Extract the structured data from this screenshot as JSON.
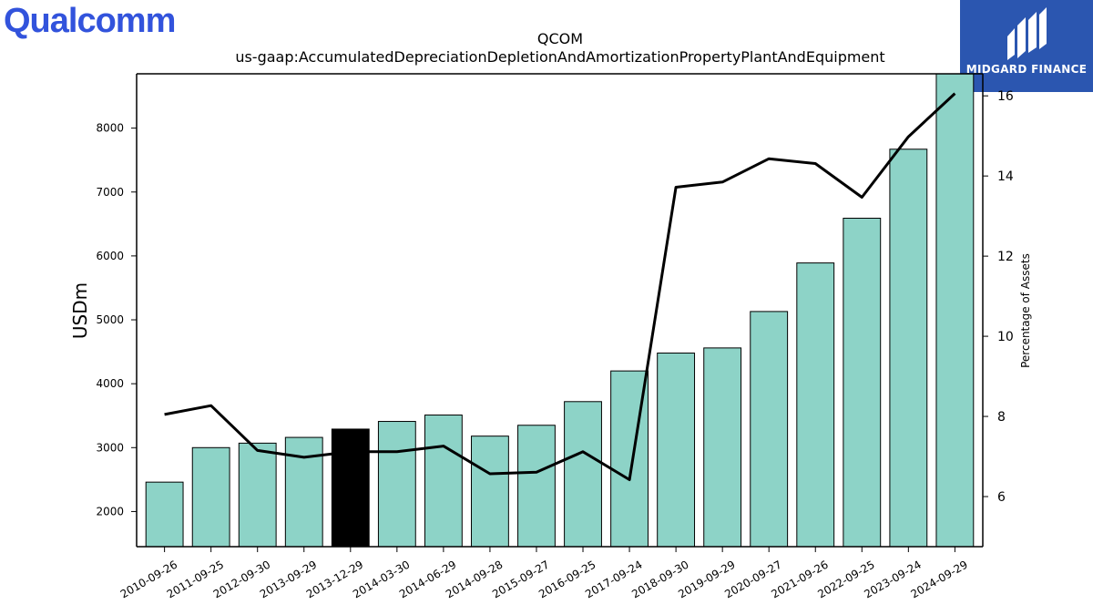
{
  "brand": {
    "left_logo_text": "Qualcomm",
    "right_logo_text": "MIDGARD FINANCE"
  },
  "colors": {
    "bar": "#8dd3c7",
    "highlight_bar": "#000000",
    "line": "#000000",
    "left_logo": "#3253dc",
    "right_logo_bg": "#2b56b0"
  },
  "chart_data": {
    "type": "bar",
    "title": "QCOM",
    "subtitle": "us-gaap:AccumulatedDepreciationDepletionAndAmortizationPropertyPlantAndEquipment",
    "ylabel": "USDm",
    "y2label": "Percentage of Assets",
    "ylim": [
      1450,
      8850
    ],
    "y2lim": [
      4.75,
      16.55
    ],
    "yticks": [
      2000,
      3000,
      4000,
      5000,
      6000,
      7000,
      8000
    ],
    "y2ticks": [
      6,
      8,
      10,
      12,
      14,
      16
    ],
    "highlight_index": 4,
    "categories": [
      "2010-09-26",
      "2011-09-25",
      "2012-09-30",
      "2013-09-29",
      "2013-12-29",
      "2014-03-30",
      "2014-06-29",
      "2014-09-28",
      "2015-09-27",
      "2016-09-25",
      "2017-09-24",
      "2018-09-30",
      "2019-09-29",
      "2020-09-27",
      "2021-09-26",
      "2022-09-25",
      "2023-09-24",
      "2024-09-29"
    ],
    "series": [
      {
        "type": "bar",
        "axis": "left",
        "values": [
          2460,
          3000,
          3070,
          3160,
          3290,
          3410,
          3510,
          3180,
          3350,
          3720,
          4200,
          4480,
          4560,
          5130,
          5890,
          6590,
          7670,
          8890
        ]
      },
      {
        "type": "line",
        "axis": "right",
        "values": [
          8.05,
          8.27,
          7.15,
          6.98,
          7.12,
          7.12,
          7.26,
          6.57,
          6.61,
          7.12,
          6.42,
          13.72,
          13.85,
          14.43,
          14.31,
          13.47,
          14.98,
          16.06
        ]
      }
    ]
  }
}
